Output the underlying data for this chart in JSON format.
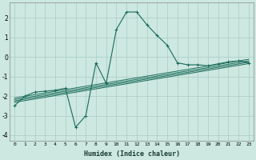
{
  "title": "",
  "xlabel": "Humidex (Indice chaleur)",
  "ylabel": "",
  "bg_color": "#cce8e0",
  "grid_color": "#aaccC4",
  "line_color": "#1a6b5a",
  "xlim": [
    -0.5,
    23.5
  ],
  "ylim": [
    -4.3,
    2.8
  ],
  "xticks": [
    0,
    1,
    2,
    3,
    4,
    5,
    6,
    7,
    8,
    9,
    10,
    11,
    12,
    13,
    14,
    15,
    16,
    17,
    18,
    19,
    20,
    21,
    22,
    23
  ],
  "yticks": [
    -4,
    -3,
    -2,
    -1,
    0,
    1,
    2
  ],
  "main_x": [
    0,
    1,
    2,
    3,
    4,
    5,
    6,
    7,
    8,
    9,
    10,
    11,
    12,
    13,
    14,
    15,
    16,
    17,
    18,
    19,
    20,
    21,
    22,
    23
  ],
  "main_y": [
    -2.5,
    -2.0,
    -1.8,
    -1.75,
    -1.7,
    -1.6,
    -3.6,
    -3.0,
    -0.3,
    -1.35,
    1.4,
    2.3,
    2.3,
    1.65,
    1.1,
    0.6,
    -0.3,
    -0.4,
    -0.4,
    -0.45,
    -0.35,
    -0.25,
    -0.2,
    -0.3
  ],
  "band_lines": [
    [
      [
        -2.1,
        -0.12
      ],
      "#1a6b5a"
    ],
    [
      [
        -2.18,
        -0.2
      ],
      "#1a6b5a"
    ],
    [
      [
        -2.25,
        -0.27
      ],
      "#1a6b5a"
    ],
    [
      [
        -2.32,
        -0.34
      ],
      "#1a6b5a"
    ]
  ]
}
